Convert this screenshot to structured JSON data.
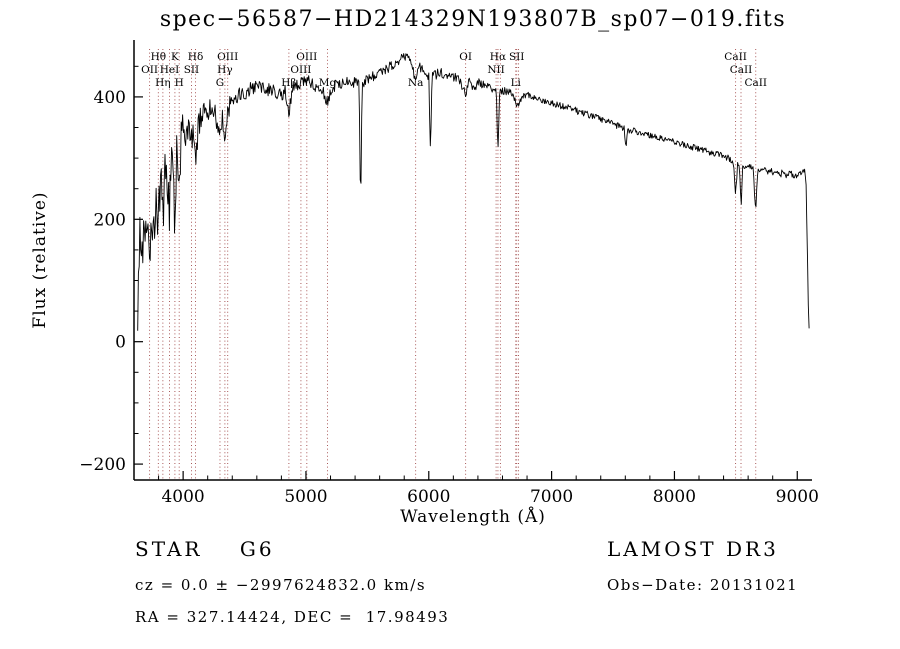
{
  "footer": {
    "class_label": "STAR    G6",
    "survey": "LAMOST DR3",
    "cz": "cz = 0.0 ± −2997624832.0 km/s",
    "obs_date": "Obs−Date: 20131021",
    "coords": "RA = 327.14424, DEC =  17.98493"
  },
  "chart_data": {
    "type": "line",
    "title": "spec−56587−HD214329N193807B_sp07−019.fits",
    "xlabel": "Wavelength (Å)",
    "ylabel": "Flux (relative)",
    "xlim": [
      3600,
      9120
    ],
    "ylim": [
      -226,
      493
    ],
    "x_ticks": [
      4000,
      5000,
      6000,
      7000,
      8000,
      9000
    ],
    "y_ticks": [
      -200,
      0,
      200,
      400
    ],
    "grid": false,
    "line_color": "#000000",
    "marker_color": "#a04848",
    "noise_seed": 20131021,
    "spectral_lines": [
      {
        "wl": 3727,
        "label": "OII",
        "row": 2
      },
      {
        "wl": 3798,
        "label": "Hθ",
        "row": 1
      },
      {
        "wl": 3835,
        "label": "Hη",
        "row": 3
      },
      {
        "wl": 3889,
        "label": "HeI",
        "row": 2
      },
      {
        "wl": 3933,
        "label": "K",
        "row": 1
      },
      {
        "wl": 3968,
        "label": "H",
        "row": 3
      },
      {
        "wl": 4068,
        "label": "SII",
        "row": 2
      },
      {
        "wl": 4101,
        "label": "Hδ",
        "row": 1
      },
      {
        "wl": 4300,
        "label": "G",
        "row": 3
      },
      {
        "wl": 4340,
        "label": "Hγ",
        "row": 2
      },
      {
        "wl": 4363,
        "label": "OIII",
        "row": 1
      },
      {
        "wl": 4861,
        "label": "Hβ",
        "row": 3
      },
      {
        "wl": 4959,
        "label": "OIII",
        "row": 2
      },
      {
        "wl": 5007,
        "label": "OIII",
        "row": 1
      },
      {
        "wl": 5175,
        "label": "Mg",
        "row": 3
      },
      {
        "wl": 5893,
        "label": "Na",
        "row": 3
      },
      {
        "wl": 6300,
        "label": "OI",
        "row": 1
      },
      {
        "wl": 6548,
        "label": "NII",
        "row": 2
      },
      {
        "wl": 6563,
        "label": "Hα",
        "row": 1
      },
      {
        "wl": 6583,
        "label": "",
        "row": 2
      },
      {
        "wl": 6708,
        "label": "Li",
        "row": 3
      },
      {
        "wl": 6716,
        "label": "SII",
        "row": 1
      },
      {
        "wl": 6731,
        "label": "",
        "row": 2
      },
      {
        "wl": 8498,
        "label": "CaII",
        "row": 1
      },
      {
        "wl": 8542,
        "label": "CaII",
        "row": 2
      },
      {
        "wl": 8662,
        "label": "CaII",
        "row": 3
      }
    ],
    "envelope": [
      [
        3630,
        60
      ],
      [
        3648,
        165
      ],
      [
        3662,
        105
      ],
      [
        3680,
        205
      ],
      [
        3700,
        150
      ],
      [
        3715,
        225
      ],
      [
        3727,
        140
      ],
      [
        3742,
        220
      ],
      [
        3760,
        170
      ],
      [
        3778,
        255
      ],
      [
        3798,
        185
      ],
      [
        3815,
        275
      ],
      [
        3835,
        200
      ],
      [
        3855,
        295
      ],
      [
        3872,
        255
      ],
      [
        3889,
        210
      ],
      [
        3905,
        315
      ],
      [
        3920,
        275
      ],
      [
        3933,
        185
      ],
      [
        3950,
        325
      ],
      [
        3968,
        235
      ],
      [
        3985,
        340
      ],
      [
        4000,
        350
      ],
      [
        4020,
        330
      ],
      [
        4050,
        345
      ],
      [
        4080,
        330
      ],
      [
        4101,
        285
      ],
      [
        4125,
        355
      ],
      [
        4150,
        370
      ],
      [
        4180,
        385
      ],
      [
        4210,
        375
      ],
      [
        4240,
        385
      ],
      [
        4270,
        365
      ],
      [
        4300,
        345
      ],
      [
        4320,
        370
      ],
      [
        4340,
        322
      ],
      [
        4362,
        378
      ],
      [
        4400,
        395
      ],
      [
        4450,
        405
      ],
      [
        4500,
        408
      ],
      [
        4550,
        414
      ],
      [
        4600,
        420
      ],
      [
        4650,
        418
      ],
      [
        4700,
        412
      ],
      [
        4750,
        408
      ],
      [
        4800,
        402
      ],
      [
        4830,
        410
      ],
      [
        4861,
        372
      ],
      [
        4890,
        415
      ],
      [
        4920,
        420
      ],
      [
        4960,
        424
      ],
      [
        5000,
        428
      ],
      [
        5040,
        422
      ],
      [
        5080,
        418
      ],
      [
        5130,
        412
      ],
      [
        5175,
        392
      ],
      [
        5210,
        414
      ],
      [
        5250,
        420
      ],
      [
        5300,
        424
      ],
      [
        5350,
        426
      ],
      [
        5400,
        424
      ],
      [
        5432,
        422
      ],
      [
        5445,
        220
      ],
      [
        5458,
        422
      ],
      [
        5520,
        430
      ],
      [
        5570,
        436
      ],
      [
        5620,
        440
      ],
      [
        5680,
        448
      ],
      [
        5740,
        458
      ],
      [
        5790,
        466
      ],
      [
        5830,
        470
      ],
      [
        5860,
        458
      ],
      [
        5893,
        420
      ],
      [
        5915,
        452
      ],
      [
        5955,
        442
      ],
      [
        5985,
        432
      ],
      [
        6000,
        432
      ],
      [
        6013,
        310
      ],
      [
        6026,
        432
      ],
      [
        6090,
        440
      ],
      [
        6140,
        437
      ],
      [
        6200,
        433
      ],
      [
        6250,
        430
      ],
      [
        6300,
        402
      ],
      [
        6330,
        426
      ],
      [
        6364,
        414
      ],
      [
        6400,
        423
      ],
      [
        6450,
        420
      ],
      [
        6500,
        416
      ],
      [
        6530,
        412
      ],
      [
        6550,
        408
      ],
      [
        6563,
        310
      ],
      [
        6576,
        408
      ],
      [
        6620,
        410
      ],
      [
        6660,
        407
      ],
      [
        6700,
        396
      ],
      [
        6716,
        382
      ],
      [
        6731,
        386
      ],
      [
        6760,
        402
      ],
      [
        6800,
        403
      ],
      [
        6850,
        400
      ],
      [
        6900,
        397
      ],
      [
        6950,
        394
      ],
      [
        7000,
        391
      ],
      [
        7050,
        388
      ],
      [
        7100,
        384
      ],
      [
        7160,
        380
      ],
      [
        7220,
        376
      ],
      [
        7280,
        372
      ],
      [
        7340,
        368
      ],
      [
        7400,
        364
      ],
      [
        7460,
        359
      ],
      [
        7520,
        354
      ],
      [
        7575,
        350
      ],
      [
        7590,
        348
      ],
      [
        7605,
        320
      ],
      [
        7620,
        346
      ],
      [
        7680,
        344
      ],
      [
        7740,
        341
      ],
      [
        7800,
        338
      ],
      [
        7860,
        335
      ],
      [
        7920,
        331
      ],
      [
        7980,
        328
      ],
      [
        8040,
        324
      ],
      [
        8100,
        321
      ],
      [
        8160,
        317
      ],
      [
        8220,
        314
      ],
      [
        8280,
        310
      ],
      [
        8340,
        307
      ],
      [
        8400,
        303
      ],
      [
        8450,
        299
      ],
      [
        8482,
        294
      ],
      [
        8498,
        238
      ],
      [
        8514,
        290
      ],
      [
        8530,
        288
      ],
      [
        8542,
        218
      ],
      [
        8556,
        286
      ],
      [
        8600,
        286
      ],
      [
        8640,
        284
      ],
      [
        8662,
        214
      ],
      [
        8680,
        282
      ],
      [
        8740,
        280
      ],
      [
        8790,
        278
      ],
      [
        8840,
        276
      ],
      [
        8890,
        274
      ],
      [
        8940,
        273
      ],
      [
        8990,
        271
      ],
      [
        9030,
        274
      ],
      [
        9058,
        280
      ],
      [
        9072,
        250
      ],
      [
        9085,
        110
      ],
      [
        9095,
        15
      ]
    ],
    "noise_amplitude": [
      [
        3630,
        48
      ],
      [
        3700,
        44
      ],
      [
        3800,
        40
      ],
      [
        3900,
        36
      ],
      [
        4000,
        28
      ],
      [
        4150,
        22
      ],
      [
        4300,
        17
      ],
      [
        4500,
        13
      ],
      [
        4700,
        11
      ],
      [
        5000,
        10
      ],
      [
        5300,
        9
      ],
      [
        5600,
        9
      ],
      [
        5900,
        8
      ],
      [
        6200,
        8
      ],
      [
        6500,
        7
      ],
      [
        6800,
        6
      ],
      [
        7100,
        6
      ],
      [
        7400,
        5
      ],
      [
        7700,
        5
      ],
      [
        8000,
        5
      ],
      [
        8300,
        5
      ],
      [
        8600,
        5
      ],
      [
        8900,
        6
      ],
      [
        9040,
        7
      ],
      [
        9095,
        10
      ]
    ]
  }
}
